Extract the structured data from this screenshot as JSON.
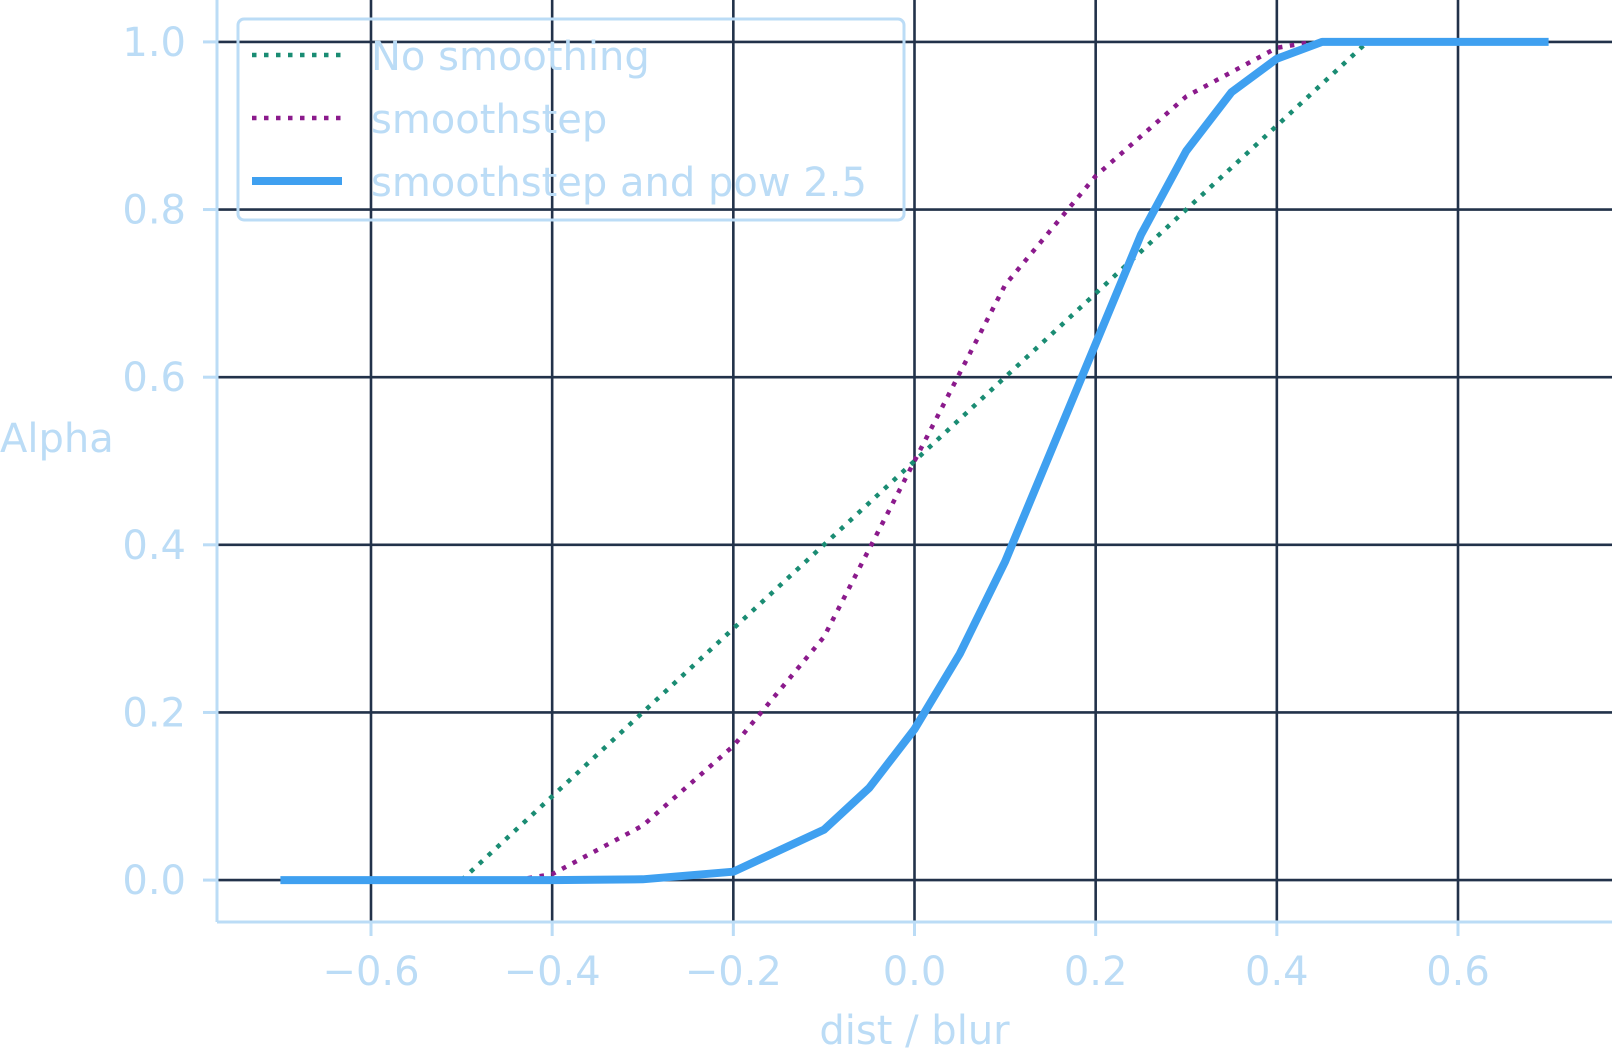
{
  "chart_data": {
    "type": "line",
    "title": "",
    "xlabel": "dist / blur",
    "ylabel": "Alpha",
    "xlim": [
      -0.77,
      0.77
    ],
    "ylim": [
      -0.05,
      1.05
    ],
    "xticks": [
      -0.6,
      -0.4,
      -0.2,
      0.0,
      0.2,
      0.4,
      0.6
    ],
    "xtick_labels": [
      "−0.6",
      "−0.4",
      "−0.2",
      "0.0",
      "0.2",
      "0.4",
      "0.6"
    ],
    "yticks": [
      0.0,
      0.2,
      0.4,
      0.6,
      0.8,
      1.0
    ],
    "ytick_labels": [
      "0.0",
      "0.2",
      "0.4",
      "0.6",
      "0.8",
      "1.0"
    ],
    "grid": true,
    "legend_position": "top-left",
    "series": [
      {
        "name": "No smoothing",
        "style": "dotted",
        "color": "#1a8c73",
        "x": [
          -0.5,
          -0.4,
          -0.3,
          -0.2,
          -0.1,
          0.0,
          0.1,
          0.2,
          0.3,
          0.4,
          0.5
        ],
        "y": [
          0.0,
          0.1,
          0.2,
          0.3,
          0.4,
          0.5,
          0.6,
          0.7,
          0.8,
          0.9,
          1.0
        ]
      },
      {
        "name": "smoothstep",
        "style": "dotted",
        "color": "#8b1a8c",
        "x": [
          -0.44,
          -0.4,
          -0.3,
          -0.2,
          -0.1,
          0.0,
          0.1,
          0.2,
          0.3,
          0.4,
          0.44
        ],
        "y": [
          0.0,
          0.007,
          0.065,
          0.16,
          0.29,
          0.5,
          0.71,
          0.84,
          0.935,
          0.993,
          1.0
        ]
      },
      {
        "name": "smoothstep and pow 2.5",
        "style": "solid",
        "color": "#3fa0f0",
        "x": [
          -0.7,
          -0.4,
          -0.3,
          -0.2,
          -0.1,
          -0.05,
          0.0,
          0.05,
          0.1,
          0.15,
          0.2,
          0.25,
          0.3,
          0.35,
          0.4,
          0.45,
          0.5,
          0.7
        ],
        "y": [
          0.0,
          0.0,
          0.001,
          0.01,
          0.06,
          0.11,
          0.18,
          0.27,
          0.38,
          0.51,
          0.64,
          0.77,
          0.87,
          0.94,
          0.98,
          1.0,
          1.0,
          1.0
        ]
      }
    ],
    "colors": {
      "axis": "#bbdcf6",
      "text": "#bbdcf6",
      "grid": "#22324a",
      "background": "#ffffff"
    }
  }
}
